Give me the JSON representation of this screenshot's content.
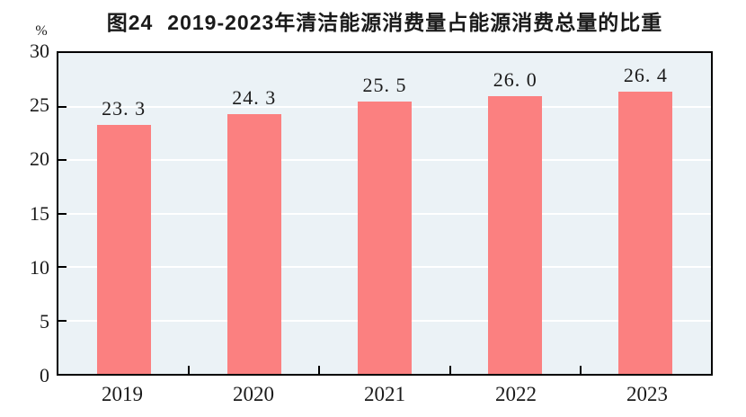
{
  "chart_data": {
    "type": "bar",
    "figure_label": "图24",
    "title": "2019-2023年清洁能源消费量占能源消费总量的比重",
    "y_unit": "%",
    "categories": [
      "2019",
      "2020",
      "2021",
      "2022",
      "2023"
    ],
    "values": [
      23.3,
      24.3,
      25.5,
      26.0,
      26.4
    ],
    "value_labels": [
      "23. 3",
      "24. 3",
      "25. 5",
      "26. 0",
      "26. 4"
    ],
    "xlabel": "",
    "ylabel": "%",
    "ylim": [
      0,
      30
    ],
    "yticks": [
      0,
      5,
      10,
      15,
      20,
      25,
      30
    ],
    "grid": "horizontal",
    "legend": "none",
    "colors": {
      "bar": "#FB8080",
      "plot_bg": "#EBF2F6",
      "gridline": "#FFFFFF",
      "axis": "#000000",
      "text": "#1A1A1A"
    }
  }
}
